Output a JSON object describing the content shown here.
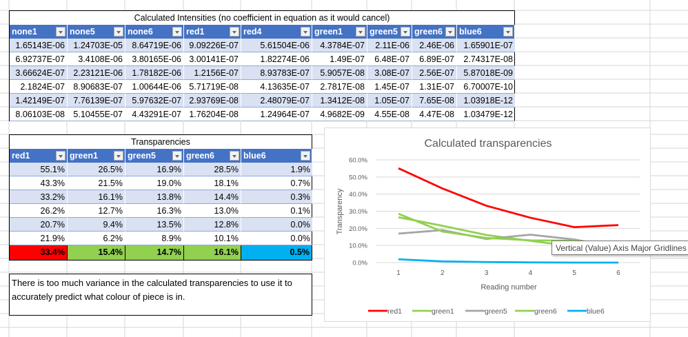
{
  "intensities": {
    "title": "Calculated Intensities (no coefficient in equation as it would cancel)",
    "headers": [
      "none1",
      "none5",
      "none6",
      "red1",
      "red4",
      "green1",
      "green5",
      "green6",
      "blue6"
    ],
    "rows": [
      [
        "1.65143E-06",
        "1.24703E-05",
        "8.64719E-06",
        "9.09226E-07",
        "5.61504E-06",
        "4.3784E-07",
        "2.11E-06",
        "2.46E-06",
        "1.65901E-07"
      ],
      [
        "6.92737E-07",
        "3.4108E-06",
        "3.80165E-06",
        "3.00141E-07",
        "1.82274E-06",
        "1.49E-07",
        "6.48E-07",
        "6.89E-07",
        "2.74317E-08"
      ],
      [
        "3.66624E-07",
        "2.23121E-06",
        "1.78182E-06",
        "1.2156E-07",
        "8.93783E-07",
        "5.9057E-08",
        "3.08E-07",
        "2.56E-07",
        "5.87018E-09"
      ],
      [
        "2.1824E-07",
        "8.90683E-07",
        "1.00644E-06",
        "5.71719E-08",
        "4.13635E-07",
        "2.7817E-08",
        "1.45E-07",
        "1.31E-07",
        "6.70007E-10"
      ],
      [
        "1.42149E-07",
        "7.76139E-07",
        "5.97632E-07",
        "2.93769E-08",
        "2.48079E-07",
        "1.3412E-08",
        "1.05E-07",
        "7.65E-08",
        "1.03918E-12"
      ],
      [
        "8.06103E-08",
        "5.10455E-07",
        "4.43291E-07",
        "1.76204E-08",
        "1.24964E-07",
        "4.9682E-09",
        "4.55E-08",
        "4.47E-08",
        "1.03479E-12"
      ]
    ]
  },
  "transparencies": {
    "title": "Transparencies",
    "headers": [
      "red1",
      "green1",
      "green5",
      "green6",
      "blue6"
    ],
    "rows": [
      [
        "55.1%",
        "26.5%",
        "16.9%",
        "28.5%",
        "1.9%"
      ],
      [
        "43.3%",
        "21.5%",
        "19.0%",
        "18.1%",
        "0.7%"
      ],
      [
        "33.2%",
        "16.1%",
        "13.8%",
        "14.4%",
        "0.3%"
      ],
      [
        "26.2%",
        "12.7%",
        "16.3%",
        "13.0%",
        "0.1%"
      ],
      [
        "20.7%",
        "9.4%",
        "13.5%",
        "12.8%",
        "0.0%"
      ],
      [
        "21.9%",
        "6.2%",
        "8.9%",
        "10.1%",
        "0.0%"
      ]
    ],
    "totals": [
      "33.4%",
      "15.4%",
      "14.7%",
      "16.1%",
      "0.5%"
    ],
    "total_colors": [
      "#ff0000",
      "#92d050",
      "#92d050",
      "#92d050",
      "#00b0f0"
    ]
  },
  "note": "There is too much variance in the calculated transparencies to use it to accurately predict what colour of piece is in.",
  "tooltip": "Vertical (Value) Axis Major Gridlines",
  "chart_data": {
    "type": "line",
    "title": "Calculated transparencies",
    "xlabel": "Reading number",
    "ylabel": "Transparency",
    "x": [
      1,
      2,
      3,
      4,
      5,
      6
    ],
    "ylim": [
      0,
      0.6
    ],
    "yticks": [
      "0.0%",
      "10.0%",
      "20.0%",
      "30.0%",
      "40.0%",
      "50.0%",
      "60.0%"
    ],
    "grid": true,
    "legend": "bottom",
    "series": [
      {
        "name": "red1",
        "color": "#ff0000",
        "values": [
          0.551,
          0.433,
          0.332,
          0.262,
          0.207,
          0.219
        ]
      },
      {
        "name": "green1",
        "color": "#92d050",
        "values": [
          0.265,
          0.215,
          0.161,
          0.127,
          0.094,
          0.062
        ]
      },
      {
        "name": "green5",
        "color": "#a5a5a5",
        "values": [
          0.169,
          0.19,
          0.138,
          0.163,
          0.135,
          0.089
        ]
      },
      {
        "name": "green6",
        "color": "#92d050",
        "values": [
          0.285,
          0.181,
          0.144,
          0.13,
          0.128,
          0.101
        ]
      },
      {
        "name": "blue6",
        "color": "#00b0f0",
        "values": [
          0.019,
          0.007,
          0.003,
          0.001,
          0.0,
          0.0
        ]
      }
    ]
  }
}
